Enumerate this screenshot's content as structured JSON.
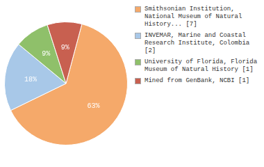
{
  "chart_data": {
    "type": "pie",
    "categories": [
      "Smithsonian Institution,\nNational Museum of Natural\nHistory... [7]",
      "INVEMAR, Marine and Coastal\nResearch Institute, Colombia [2]",
      "University of Florida, Florida\nMuseum of Natural History [1]",
      "Mined from GenBank, NCBI [1]"
    ],
    "values": [
      63,
      18,
      9,
      9
    ],
    "value_labels": [
      "63%",
      "18%",
      "9%",
      "9%"
    ],
    "colors": [
      "#f5a96a",
      "#a8c8e8",
      "#8fc06a",
      "#c86050"
    ],
    "data_labels": true,
    "legend": "right"
  }
}
